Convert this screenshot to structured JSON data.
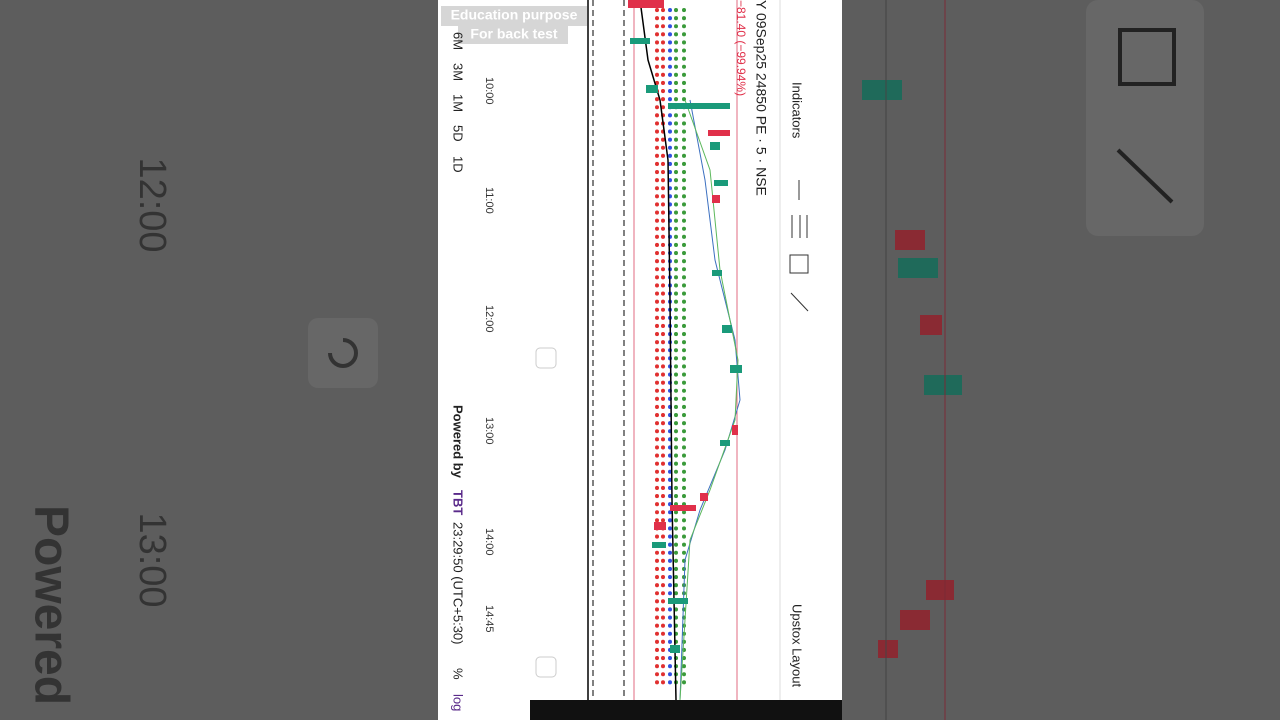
{
  "watermark": {
    "line1": "Education purpose",
    "line2": "For back test"
  },
  "timeframes": [
    "6M",
    "3M",
    "1M",
    "5D",
    "1D"
  ],
  "time_axis": [
    "10:00",
    "11:00",
    "12:00",
    "13:00",
    "14:00",
    "14:45"
  ],
  "footer": {
    "powered_by": "Powered by",
    "brand": "TBT",
    "clock": "23:29:50 (UTC+5:30)",
    "percent": "%",
    "log": "log"
  },
  "header": {
    "symbol": "Y 09Sep25 24850 PE · 5 · NSE",
    "change": "−81.40 (−99.94%)"
  },
  "toolbar": {
    "indicators": "Indicators",
    "layout": "Upstox Layout"
  },
  "background": {
    "time1": "12:00",
    "time2": "13:00",
    "powered": "Powered b"
  }
}
